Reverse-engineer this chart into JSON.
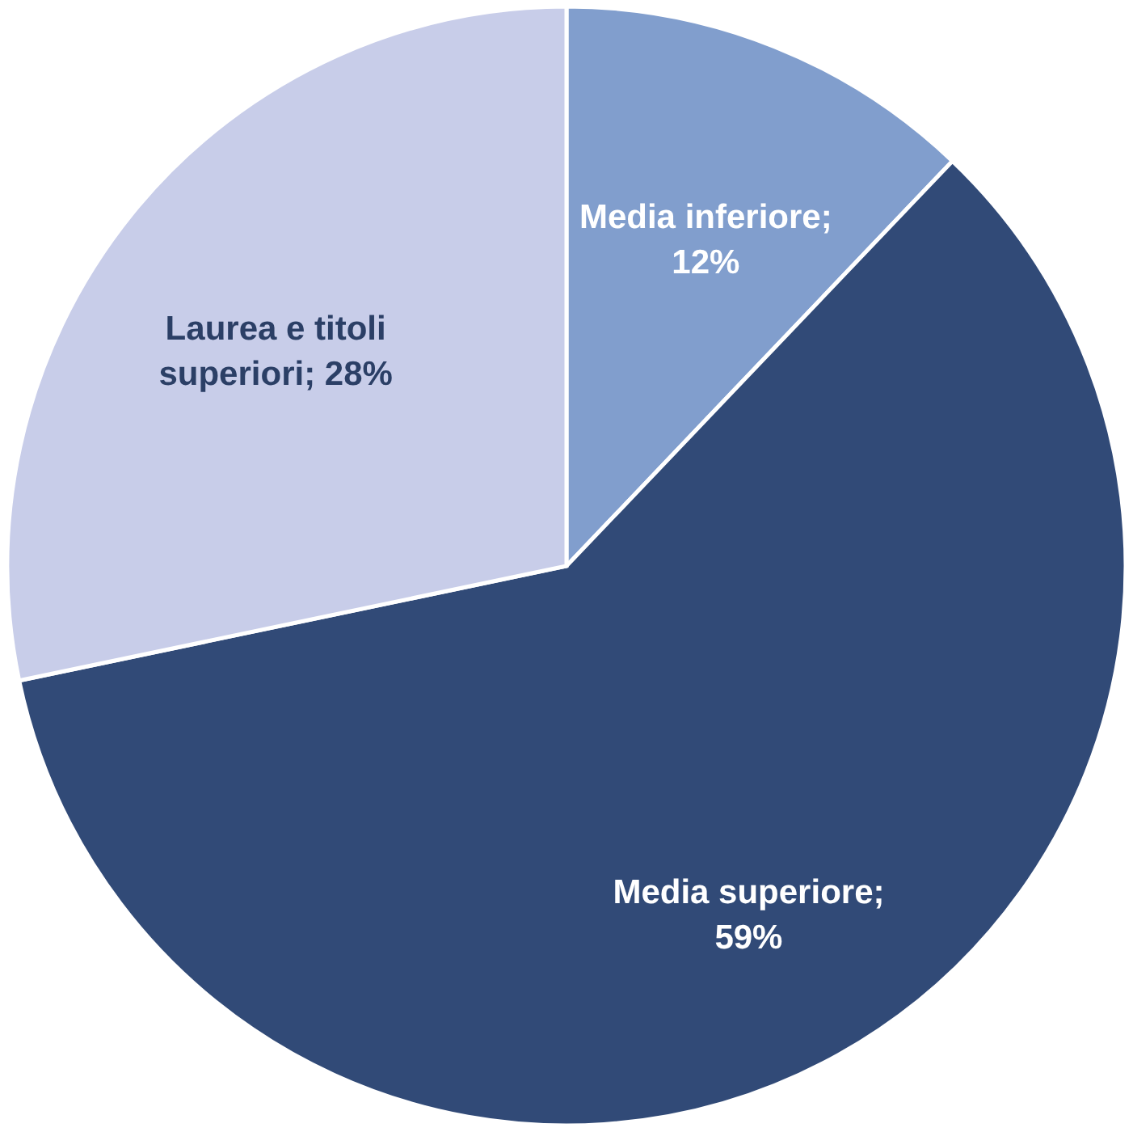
{
  "chart_data": {
    "type": "pie",
    "categories": [
      "Media inferiore",
      "Media superiore",
      "Laurea e titoli superiori"
    ],
    "values": [
      12,
      59,
      28
    ],
    "value_labels": [
      "; 12%",
      "; 59%",
      "; 28%"
    ],
    "colors": [
      "#819ecd",
      "#314a77",
      "#c8cde9"
    ]
  }
}
